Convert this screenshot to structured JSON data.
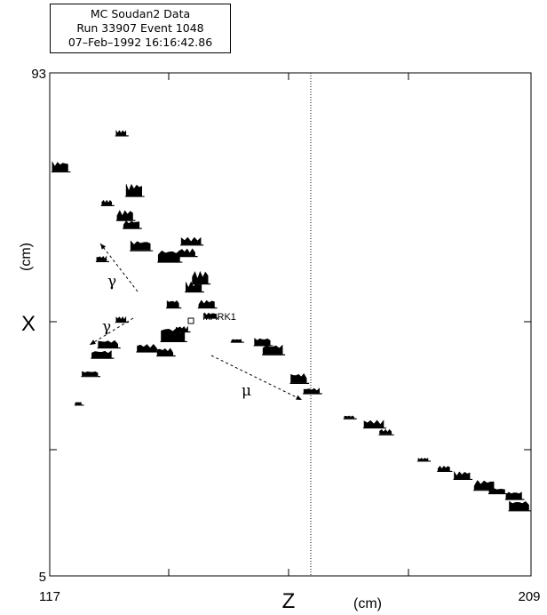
{
  "info_box": {
    "line1": "MC Soudan2 Data",
    "line2": "Run 33907 Event 1048",
    "line3": "07–Feb–1992 16:16:42.86"
  },
  "chart_data": {
    "type": "scatter",
    "title": "",
    "xlabel": "Z",
    "xunit": "(cm)",
    "ylabel": "X",
    "yunit": "(cm)",
    "xlim": [
      117,
      209
    ],
    "ylim": [
      5,
      93
    ],
    "x_tick_labels": [
      "117",
      "209"
    ],
    "y_tick_labels": [
      "93",
      "5"
    ],
    "vertical_line_z": 136.9,
    "grid": false,
    "marker": {
      "label": "MARK1",
      "z": 130.2,
      "x": 49.2
    },
    "annotations": [
      {
        "label": "γ",
        "z": 127.0,
        "x": 57.5
      },
      {
        "label": "γ",
        "z": 125.4,
        "x": 48.5
      },
      {
        "label": "μ",
        "z": 136.2,
        "x": 38.8
      }
    ],
    "hits": [
      {
        "z": 117.8,
        "x": 75.8,
        "h": 4,
        "w": 8
      },
      {
        "z": 119.2,
        "x": 35.0,
        "h": 1,
        "w": 3
      },
      {
        "z": 120.1,
        "x": 40.0,
        "h": 2,
        "w": 8
      },
      {
        "z": 121.0,
        "x": 43.2,
        "h": 3,
        "w": 10
      },
      {
        "z": 121.5,
        "x": 45.0,
        "h": 3,
        "w": 10
      },
      {
        "z": 121.0,
        "x": 60.1,
        "h": 2,
        "w": 5
      },
      {
        "z": 124.5,
        "x": 44.3,
        "h": 3,
        "w": 10
      },
      {
        "z": 122.5,
        "x": 49.5,
        "h": 2,
        "w": 5
      },
      {
        "z": 121.4,
        "x": 69.9,
        "h": 2,
        "w": 5
      },
      {
        "z": 122.5,
        "x": 82.1,
        "h": 2,
        "w": 5
      },
      {
        "z": 122.8,
        "x": 67.3,
        "h": 4,
        "w": 8
      },
      {
        "z": 123.5,
        "x": 71.5,
        "h": 5,
        "w": 8
      },
      {
        "z": 123.3,
        "x": 65.9,
        "h": 3,
        "w": 8
      },
      {
        "z": 124.0,
        "x": 62.0,
        "h": 4,
        "w": 10
      },
      {
        "z": 126.2,
        "x": 60.0,
        "h": 5,
        "w": 11
      },
      {
        "z": 126.5,
        "x": 52.0,
        "h": 3,
        "w": 6
      },
      {
        "z": 126.5,
        "x": 46.1,
        "h": 6,
        "w": 12
      },
      {
        "z": 125.9,
        "x": 43.6,
        "h": 3,
        "w": 8
      },
      {
        "z": 127.2,
        "x": 47.8,
        "h": 2,
        "w": 6
      },
      {
        "z": 127.6,
        "x": 61.0,
        "h": 3,
        "w": 8
      },
      {
        "z": 127.9,
        "x": 63.0,
        "h": 3,
        "w": 10
      },
      {
        "z": 128.6,
        "x": 56.2,
        "h": 5,
        "w": 8
      },
      {
        "z": 128.1,
        "x": 54.8,
        "h": 4,
        "w": 8
      },
      {
        "z": 129.1,
        "x": 52.0,
        "h": 3,
        "w": 8
      },
      {
        "z": 129.4,
        "x": 50.2,
        "h": 2,
        "w": 6
      },
      {
        "z": 131.4,
        "x": 46.0,
        "h": 1,
        "w": 5
      },
      {
        "z": 133.4,
        "x": 45.4,
        "h": 3,
        "w": 8
      },
      {
        "z": 134.2,
        "x": 43.8,
        "h": 4,
        "w": 10
      },
      {
        "z": 136.2,
        "x": 38.8,
        "h": 4,
        "w": 8
      },
      {
        "z": 137.2,
        "x": 37.0,
        "h": 2,
        "w": 8
      },
      {
        "z": 140.1,
        "x": 32.6,
        "h": 1,
        "w": 5
      },
      {
        "z": 142.0,
        "x": 31.0,
        "h": 3,
        "w": 10
      },
      {
        "z": 142.9,
        "x": 29.8,
        "h": 2,
        "w": 6
      },
      {
        "z": 145.8,
        "x": 25.2,
        "h": 1,
        "w": 5
      },
      {
        "z": 147.4,
        "x": 23.4,
        "h": 2,
        "w": 6
      },
      {
        "z": 148.8,
        "x": 22.0,
        "h": 3,
        "w": 8
      },
      {
        "z": 150.5,
        "x": 20.1,
        "h": 4,
        "w": 10
      },
      {
        "z": 151.5,
        "x": 19.5,
        "h": 2,
        "w": 8
      },
      {
        "z": 152.8,
        "x": 18.5,
        "h": 3,
        "w": 8
      },
      {
        "z": 153.2,
        "x": 16.5,
        "h": 4,
        "w": 10
      }
    ]
  }
}
